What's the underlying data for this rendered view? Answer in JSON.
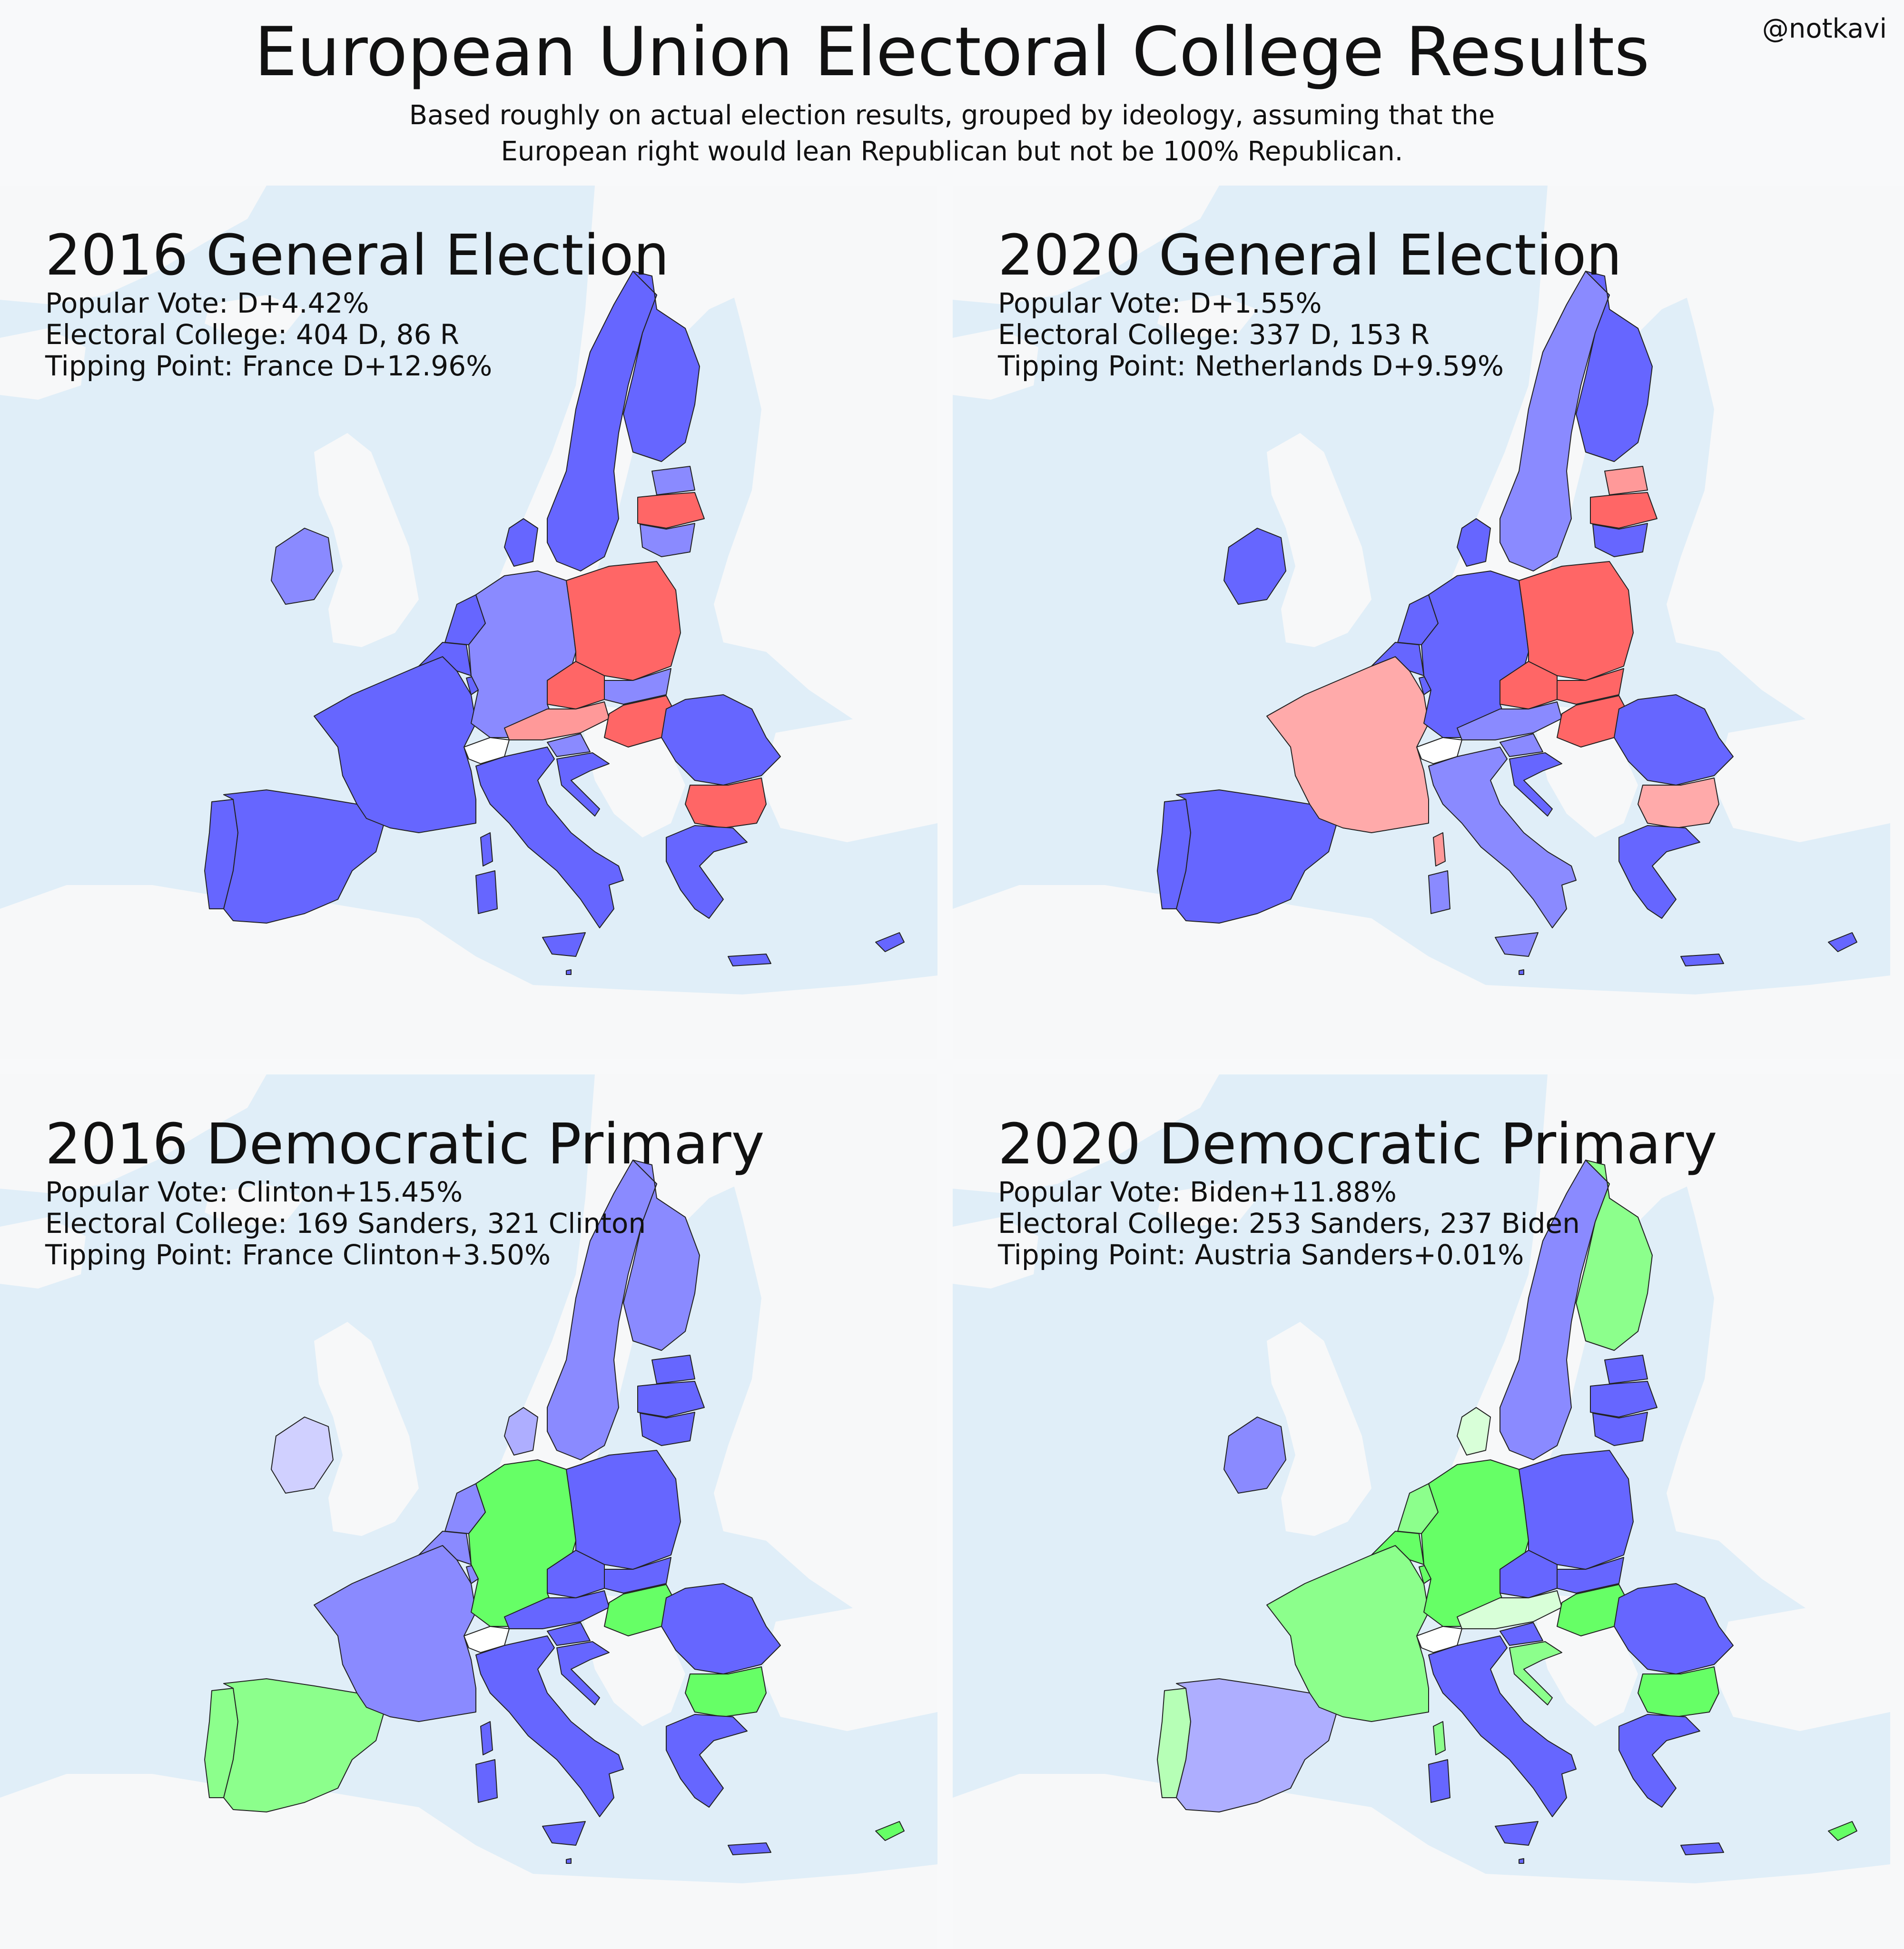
{
  "header": {
    "title": "European Union Electoral College Results",
    "handle": "@notkavi",
    "subtitle_line1": "Based roughly on actual election results, grouped by ideology, assuming that the",
    "subtitle_line2": "European right would lean Republican but not be 100% Republican."
  },
  "colors": {
    "sea": "#e0eef8",
    "land": "#f7f8f9",
    "dem_strong": "#6666ff",
    "dem_medium": "#8a8aff",
    "dem_light": "#aeaeff",
    "dem_faint": "#d0d0ff",
    "rep_strong": "#ff6666",
    "rep_light": "#ffaaaa",
    "sanders_strong": "#66ff66",
    "sanders_medium": "#8cff8c",
    "sanders_light": "#b6ffb6",
    "sanders_faint": "#d8ffd8",
    "no_data": "#ffffff"
  },
  "panels": [
    {
      "id": "ge2016",
      "title": "2016 General Election",
      "line1": "Popular Vote: D+4.42%",
      "line2": "Electoral College: 404 D, 86 R",
      "line3": "Tipping Point: France D+12.96%",
      "fills": {
        "portugal": "#6666ff",
        "spain": "#6666ff",
        "france": "#6666ff",
        "belgium": "#6666ff",
        "netherlands": "#6666ff",
        "luxembourg": "#6666ff",
        "germany": "#8a8aff",
        "denmark": "#6666ff",
        "ireland": "#8a8aff",
        "sweden": "#6666ff",
        "finland": "#6666ff",
        "estonia": "#8a8aff",
        "latvia": "#ff6666",
        "lithuania": "#8a8aff",
        "poland": "#ff6666",
        "czechia": "#ff6666",
        "slovakia": "#8a8aff",
        "austria": "#ff9999",
        "hungary": "#ff6666",
        "slovenia": "#8a8aff",
        "croatia": "#6666ff",
        "italy": "#6666ff",
        "corsica": "#6666ff",
        "sardinia": "#6666ff",
        "sicily": "#6666ff",
        "romania": "#6666ff",
        "bulgaria": "#ff6666",
        "greece": "#6666ff",
        "crete": "#6666ff",
        "cyprus": "#6666ff",
        "malta": "#6666ff",
        "switzerland": "#ffffff"
      }
    },
    {
      "id": "ge2020",
      "title": "2020 General Election",
      "line1": "Popular Vote: D+1.55%",
      "line2": "Electoral College: 337 D, 153 R",
      "line3": "Tipping Point: Netherlands D+9.59%",
      "fills": {
        "portugal": "#6666ff",
        "spain": "#6666ff",
        "france": "#ffaaaa",
        "belgium": "#6666ff",
        "netherlands": "#6666ff",
        "luxembourg": "#6666ff",
        "germany": "#6666ff",
        "denmark": "#6666ff",
        "ireland": "#6666ff",
        "sweden": "#8a8aff",
        "finland": "#6666ff",
        "estonia": "#ff9999",
        "latvia": "#ff6666",
        "lithuania": "#6666ff",
        "poland": "#ff6666",
        "czechia": "#ff6666",
        "slovakia": "#ff6666",
        "austria": "#8a8aff",
        "hungary": "#ff6666",
        "slovenia": "#8a8aff",
        "croatia": "#6666ff",
        "italy": "#8a8aff",
        "corsica": "#ff9999",
        "sardinia": "#8a8aff",
        "sicily": "#8a8aff",
        "romania": "#6666ff",
        "bulgaria": "#ffaaaa",
        "greece": "#6666ff",
        "crete": "#6666ff",
        "cyprus": "#6666ff",
        "malta": "#6666ff",
        "switzerland": "#ffffff"
      }
    },
    {
      "id": "dp2016",
      "title": "2016 Democratic Primary",
      "line1": "Popular Vote: Clinton+15.45%",
      "line2": "Electoral College: 169 Sanders, 321 Clinton",
      "line3": "Tipping Point: France Clinton+3.50%",
      "fills": {
        "portugal": "#8cff8c",
        "spain": "#8cff8c",
        "france": "#8a8aff",
        "belgium": "#8a8aff",
        "netherlands": "#8a8aff",
        "luxembourg": "#8a8aff",
        "germany": "#66ff66",
        "denmark": "#aeaeff",
        "ireland": "#d0d0ff",
        "sweden": "#8a8aff",
        "finland": "#8a8aff",
        "estonia": "#6666ff",
        "latvia": "#6666ff",
        "lithuania": "#6666ff",
        "poland": "#6666ff",
        "czechia": "#6666ff",
        "slovakia": "#6666ff",
        "austria": "#6666ff",
        "hungary": "#66ff66",
        "slovenia": "#6666ff",
        "croatia": "#6666ff",
        "italy": "#6666ff",
        "corsica": "#6666ff",
        "sardinia": "#6666ff",
        "sicily": "#6666ff",
        "romania": "#6666ff",
        "bulgaria": "#66ff66",
        "greece": "#6666ff",
        "crete": "#6666ff",
        "cyprus": "#66ff66",
        "malta": "#6666ff",
        "switzerland": "#ffffff"
      }
    },
    {
      "id": "dp2020",
      "title": "2020 Democratic Primary",
      "line1": "Popular Vote: Biden+11.88%",
      "line2": "Electoral College: 253 Sanders, 237 Biden",
      "line3": "Tipping Point: Austria Sanders+0.01%",
      "fills": {
        "portugal": "#b6ffb6",
        "spain": "#aeaeff",
        "france": "#8cff8c",
        "belgium": "#66ff66",
        "netherlands": "#8cff8c",
        "luxembourg": "#66ff66",
        "germany": "#66ff66",
        "denmark": "#d8ffd8",
        "ireland": "#8a8aff",
        "sweden": "#8a8aff",
        "finland": "#8cff8c",
        "estonia": "#6666ff",
        "latvia": "#6666ff",
        "lithuania": "#6666ff",
        "poland": "#6666ff",
        "czechia": "#6666ff",
        "slovakia": "#6666ff",
        "austria": "#d8ffd8",
        "hungary": "#66ff66",
        "slovenia": "#6666ff",
        "croatia": "#8cff8c",
        "italy": "#6666ff",
        "corsica": "#8cff8c",
        "sardinia": "#6666ff",
        "sicily": "#6666ff",
        "romania": "#6666ff",
        "bulgaria": "#66ff66",
        "greece": "#6666ff",
        "crete": "#6666ff",
        "cyprus": "#66ff66",
        "malta": "#6666ff",
        "switzerland": "#ffffff"
      }
    }
  ]
}
